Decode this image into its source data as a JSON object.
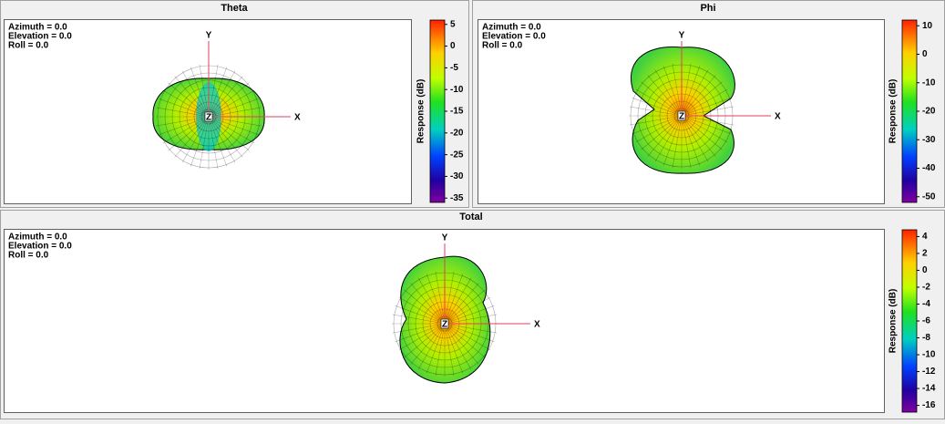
{
  "panels": [
    {
      "title": "Theta",
      "view": [
        "Azimuth = 0.0",
        "Elevation = 0.0",
        "Roll = 0.0"
      ],
      "axes": {
        "x": "X",
        "y": "Y",
        "z": "Z"
      },
      "colorbar": {
        "label": "Response (dB)",
        "range": [
          6,
          -36
        ],
        "ticks": [
          5,
          0,
          -5,
          -10,
          -15,
          -20,
          -25,
          -30,
          -35
        ]
      }
    },
    {
      "title": "Phi",
      "view": [
        "Azimuth = 0.0",
        "Elevation = 0.0",
        "Roll = 0.0"
      ],
      "axes": {
        "x": "X",
        "y": "Y",
        "z": "Z"
      },
      "colorbar": {
        "label": "Response (dB)",
        "range": [
          12,
          -52
        ],
        "ticks": [
          10,
          0,
          -10,
          -20,
          -30,
          -40,
          -50
        ]
      }
    },
    {
      "title": "Total",
      "view": [
        "Azimuth = 0.0",
        "Elevation = 0.0",
        "Roll = 0.0"
      ],
      "axes": {
        "x": "X",
        "y": "Y",
        "z": "Z"
      },
      "colorbar": {
        "label": "Response (dB)",
        "range": [
          4.8,
          -16.8
        ],
        "ticks": [
          4,
          2,
          0,
          -2,
          -4,
          -6,
          -8,
          -10,
          -12,
          -14,
          -16
        ]
      }
    }
  ]
}
